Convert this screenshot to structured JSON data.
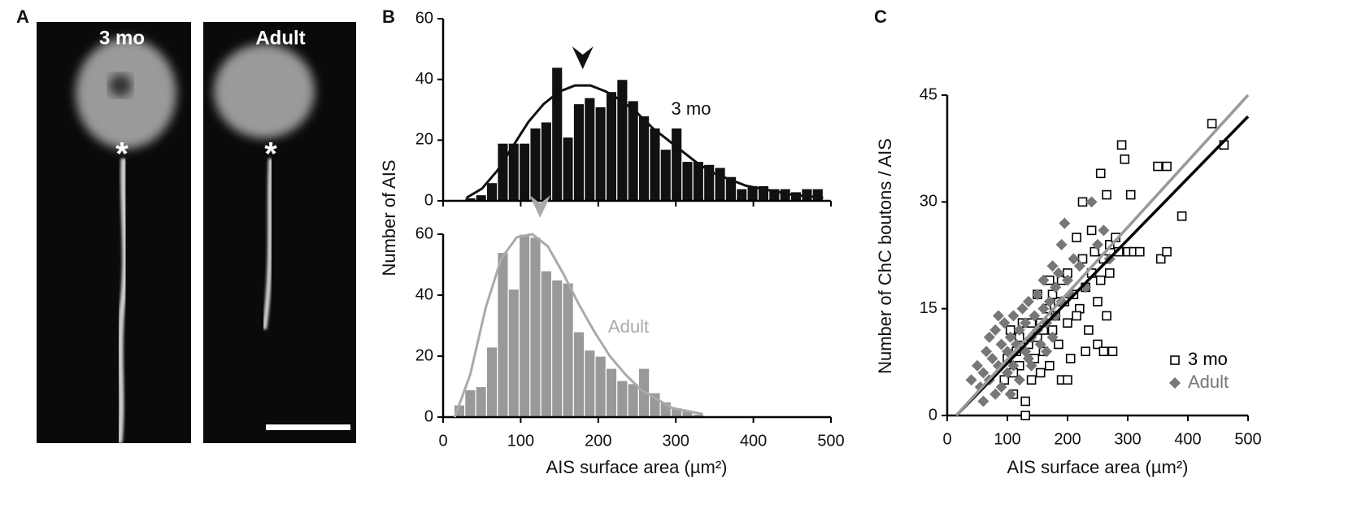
{
  "figure": {
    "panels": [
      "A",
      "B",
      "C"
    ],
    "images": [
      {
        "label": "3 mo",
        "marker": "*"
      },
      {
        "label": "Adult",
        "marker": "*"
      }
    ]
  },
  "chart_data": [
    {
      "type": "histogram",
      "name": "3 mo",
      "ylabel": "Number of AIS",
      "color": "#111111",
      "fit_color": "#111111",
      "bins": [
        28,
        42,
        56,
        70,
        84,
        98,
        112,
        126,
        140,
        154,
        168,
        182,
        196,
        210,
        224,
        238,
        252,
        266,
        280,
        294,
        308,
        322,
        336,
        350,
        364,
        378,
        392,
        406,
        420,
        434,
        448,
        462,
        476,
        490
      ],
      "values": [
        1,
        2,
        6,
        19,
        19,
        19,
        24,
        26,
        44,
        21,
        32,
        34,
        31,
        36,
        40,
        33,
        28,
        24,
        17,
        24,
        13,
        13,
        12,
        11,
        8,
        4,
        5,
        5,
        4,
        4,
        3,
        4,
        4
      ],
      "fit": {
        "x": [
          30,
          50,
          70,
          90,
          110,
          130,
          150,
          170,
          190,
          210,
          230,
          250,
          270,
          290,
          310,
          330,
          350,
          370,
          390,
          410,
          430,
          450,
          470,
          490
        ],
        "values": [
          1,
          4,
          10,
          18,
          26,
          32,
          36,
          38,
          38,
          36,
          33,
          29,
          24,
          20,
          16,
          12,
          9,
          7,
          5,
          4,
          3,
          2,
          1.5,
          1
        ]
      },
      "peak": 180,
      "xlim": [
        0,
        500
      ],
      "xticks": [
        0,
        100,
        200,
        300,
        400,
        500
      ],
      "ylim": [
        0,
        60
      ],
      "yticks": [
        0,
        20,
        40,
        60
      ]
    },
    {
      "type": "histogram",
      "name": "Adult",
      "xlabel": "AIS surface area (µm²)",
      "color": "#999999",
      "fit_color": "#aaaaaa",
      "bins": [
        14,
        28,
        42,
        56,
        70,
        84,
        98,
        112,
        126,
        140,
        154,
        168,
        182,
        196,
        210,
        224,
        238,
        252,
        266,
        280,
        294,
        308,
        322,
        336
      ],
      "values": [
        4,
        9,
        10,
        23,
        54,
        42,
        60,
        59,
        48,
        45,
        44,
        28,
        22,
        20,
        16,
        12,
        11,
        16,
        8,
        5,
        3,
        2,
        1
      ],
      "fit": {
        "x": [
          15,
          35,
          55,
          75,
          95,
          115,
          135,
          155,
          175,
          195,
          215,
          235,
          255,
          275,
          295,
          315,
          335
        ],
        "values": [
          0,
          14,
          36,
          52,
          59,
          60,
          56,
          47,
          37,
          28,
          20,
          14,
          9,
          6,
          3,
          2,
          1
        ]
      },
      "peak": 125,
      "xlim": [
        0,
        500
      ],
      "xticks": [
        0,
        100,
        200,
        300,
        400,
        500
      ],
      "ylim": [
        0,
        60
      ],
      "yticks": [
        0,
        20,
        40,
        60
      ]
    },
    {
      "type": "scatter",
      "xlabel": "AIS surface area (µm²)",
      "ylabel": "Number of ChC boutons / AIS",
      "legend": "lower right",
      "xlim": [
        0,
        500
      ],
      "xticks": [
        0,
        100,
        200,
        300,
        400,
        500
      ],
      "ylim": [
        0,
        45
      ],
      "yticks": [
        0,
        15,
        30,
        45
      ],
      "series": [
        {
          "name": "3 mo",
          "color": "#000000",
          "marker": "square",
          "x": [
            95,
            100,
            105,
            110,
            115,
            120,
            125,
            130,
            130,
            135,
            140,
            145,
            150,
            150,
            155,
            160,
            165,
            170,
            170,
            175,
            180,
            185,
            190,
            190,
            195,
            200,
            200,
            205,
            210,
            215,
            220,
            225,
            225,
            230,
            235,
            240,
            240,
            245,
            250,
            250,
            255,
            255,
            260,
            260,
            265,
            265,
            270,
            270,
            275,
            280,
            285,
            290,
            295,
            300,
            305,
            310,
            320,
            350,
            355,
            365,
            365,
            390,
            440,
            460,
            160,
            140,
            120,
            110,
            185,
            215,
            230,
            200,
            175,
            155
          ],
          "values": [
            5,
            8,
            12,
            3,
            9,
            7,
            13,
            2,
            0,
            10,
            5,
            8,
            11,
            17,
            13,
            9,
            15,
            19,
            7,
            12,
            14,
            10,
            19,
            5,
            16,
            13,
            20,
            8,
            17,
            25,
            15,
            30,
            22,
            18,
            12,
            20,
            26,
            23,
            16,
            10,
            34,
            19,
            22,
            9,
            31,
            14,
            24,
            20,
            9,
            25,
            23,
            38,
            36,
            23,
            31,
            23,
            23,
            35,
            22,
            35,
            23,
            28,
            41,
            38,
            12,
            13,
            11,
            6,
            16,
            14,
            9,
            5,
            17,
            6
          ]
        },
        {
          "name": "Adult",
          "color": "#777777",
          "marker": "diamond",
          "x": [
            40,
            50,
            55,
            60,
            65,
            70,
            70,
            75,
            80,
            80,
            85,
            90,
            90,
            95,
            100,
            100,
            105,
            110,
            110,
            115,
            120,
            120,
            125,
            130,
            130,
            135,
            140,
            140,
            145,
            150,
            150,
            155,
            160,
            160,
            165,
            170,
            175,
            180,
            180,
            185,
            190,
            190,
            195,
            200,
            205,
            210,
            220,
            230,
            240,
            250,
            260,
            270,
            60,
            85,
            105,
            135,
            165,
            175
          ],
          "values": [
            5,
            7,
            4,
            6,
            9,
            5,
            11,
            8,
            3,
            12,
            7,
            10,
            4,
            13,
            9,
            6,
            11,
            14,
            7,
            10,
            12,
            5,
            15,
            9,
            13,
            16,
            11,
            7,
            14,
            17,
            12,
            10,
            15,
            19,
            13,
            16,
            11,
            18,
            14,
            20,
            24,
            16,
            27,
            19,
            17,
            22,
            21,
            18,
            30,
            24,
            26,
            22,
            2,
            14,
            3,
            8,
            9,
            21
          ]
        }
      ],
      "lines": [
        {
          "color": "#000000",
          "x": [
            15,
            500
          ],
          "values": [
            0,
            42
          ]
        },
        {
          "color": "#999999",
          "x": [
            15,
            500
          ],
          "values": [
            0,
            45
          ]
        }
      ]
    }
  ]
}
